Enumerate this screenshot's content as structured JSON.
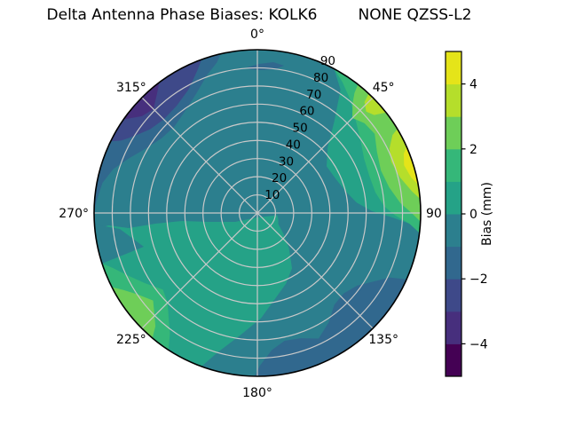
{
  "title": {
    "left": "Delta Antenna Phase Biases: KOLK6",
    "right": "NONE QZSS-L2"
  },
  "chart_data": {
    "type": "polar_contour",
    "description": "Filled polar contour map of antenna phase bias vs azimuth (0-360 deg, clockwise from north) and zenith angle (0 at center to 90 at rim)",
    "colormap": "viridis, 10 discrete 1 mm bands",
    "value_range_mm": [
      -5,
      5
    ],
    "levels_mm": [
      -5,
      -4,
      -3,
      -2,
      -1,
      0,
      1,
      2,
      3,
      4,
      5
    ],
    "grid": {
      "color": "#c9c9c9",
      "rings": [
        10,
        20,
        30,
        40,
        50,
        60,
        70,
        80
      ],
      "spokes_deg": [
        0,
        45,
        90,
        135,
        180,
        225,
        270,
        315
      ],
      "rim_color": "#000000"
    },
    "azimuth_tick_labels": [
      {
        "az": 0,
        "label": "0°"
      },
      {
        "az": 45,
        "label": "45°"
      },
      {
        "az": 90,
        "label": "90"
      },
      {
        "az": 135,
        "label": "135°"
      },
      {
        "az": 180,
        "label": "180°"
      },
      {
        "az": 225,
        "label": "225°"
      },
      {
        "az": 270,
        "label": "270°"
      },
      {
        "az": 315,
        "label": "315°"
      }
    ],
    "radial_tick_labels": [
      {
        "r": 10,
        "label": "10"
      },
      {
        "r": 20,
        "label": "20"
      },
      {
        "r": 30,
        "label": "30"
      },
      {
        "r": 40,
        "label": "40"
      },
      {
        "r": 50,
        "label": "50"
      },
      {
        "r": 60,
        "label": "60"
      },
      {
        "r": 70,
        "label": "70"
      },
      {
        "r": 80,
        "label": "80"
      },
      {
        "r": 90,
        "label": "90"
      }
    ],
    "radial_label_angle_deg": 22.5,
    "palette": {
      "m5": "#440154",
      "m4": "#472f7d",
      "m3": "#3e4989",
      "m2": "#31688e",
      "m1": "#2c7f8e",
      "p1": "#25a287",
      "p2": "#35b779",
      "p3": "#6ece58",
      "p4": "#b5de2b",
      "p5": "#e5e419"
    },
    "regions": [
      {
        "level": "0 to 1 mm",
        "color": "p1",
        "segments": [
          {
            "arc": [
              0,
              360
            ]
          }
        ]
      },
      {
        "level": "-1 to 0 mm",
        "color": "m1",
        "segments": [
          {
            "arc": [
              264,
              388
            ]
          },
          {
            "pts": [
              [
                34,
                82
              ],
              [
                40,
                66
              ],
              [
                47,
                53
              ],
              [
                56,
                46
              ],
              [
                66,
                47
              ],
              [
                76,
                50
              ],
              [
                84,
                55
              ],
              [
                89,
                63
              ],
              [
                92,
                75
              ],
              [
                94,
                84
              ],
              [
                96,
                90
              ]
            ]
          },
          {
            "arc": [
              96,
              200
            ]
          },
          {
            "pts": [
              [
                196,
                80
              ],
              [
                188,
                68
              ],
              [
                178,
                58
              ],
              [
                168,
                48
              ],
              [
                158,
                42
              ],
              [
                148,
                36
              ],
              [
                138,
                26
              ],
              [
                128,
                18
              ],
              [
                118,
                13
              ],
              [
                106,
                12
              ],
              [
                96,
                11
              ]
            ]
          },
          {
            "cpts": [
              [
                18,
                3
              ],
              [
                0,
                5
              ],
              [
                -25,
                10
              ],
              [
                -55,
                10
              ],
              [
                -85,
                9
              ],
              [
                -115,
                12
              ],
              [
                -145,
                17
              ],
              [
                -168,
                14
              ]
            ]
          }
        ]
      },
      {
        "level": "-1 to 0 mm",
        "color": "m1",
        "segments": [
          {
            "arc": [
              252,
              266
            ]
          },
          {
            "cpts": [
              [
                -155,
                18
              ],
              [
                -128,
                38
              ]
            ]
          }
        ]
      },
      {
        "level": "-2 to -1 mm",
        "color": "m2",
        "segments": [
          {
            "arc": [
              269,
              347
            ]
          },
          {
            "pts": [
              [
                345,
                86
              ],
              [
                340,
                81
              ],
              [
                333,
                74
              ],
              [
                325,
                69
              ],
              [
                316,
                66
              ],
              [
                308,
                67
              ],
              [
                300,
                71
              ],
              [
                293,
                77
              ],
              [
                287,
                83
              ],
              [
                281,
                87
              ],
              [
                274,
                89
              ]
            ]
          }
        ]
      },
      {
        "level": "-3 to -2 mm",
        "color": "m3",
        "segments": [
          {
            "arc": [
              296,
              340
            ]
          },
          {
            "pts": [
              [
                337,
                85
              ],
              [
                331,
                78
              ],
              [
                323,
                74
              ],
              [
                315,
                73
              ],
              [
                308,
                75
              ],
              [
                302,
                80
              ],
              [
                298,
                85
              ]
            ]
          }
        ]
      },
      {
        "level": "-4 to -3 mm",
        "color": "m4",
        "segments": [
          {
            "arc": [
              305,
              323
            ]
          },
          {
            "pts": [
              [
                320,
                86
              ],
              [
                315,
                81
              ],
              [
                310,
                83
              ],
              [
                307,
                87
              ]
            ]
          }
        ]
      },
      {
        "level": "-2 to -1 mm",
        "color": "m2",
        "segments": [
          {
            "cpts": [
              [
                -12,
                -164
              ],
              [
                2,
                -168
              ],
              [
                18,
                -170
              ],
              [
                30,
                -166
              ],
              [
                20,
                -162
              ],
              [
                4,
                -161
              ],
              [
                -8,
                -162
              ]
            ]
          }
        ]
      },
      {
        "level": "-2 to -1 mm",
        "color": "m2",
        "segments": [
          {
            "arc": [
              114,
              181
            ]
          },
          {
            "pts": [
              [
                179,
                84
              ],
              [
                174,
                76
              ],
              [
                168,
                72
              ],
              [
                161,
                73
              ],
              [
                154,
                77
              ],
              [
                147,
                72
              ],
              [
                140,
                66
              ],
              [
                133,
                65
              ],
              [
                126,
                68
              ],
              [
                120,
                75
              ],
              [
                116,
                81
              ]
            ]
          }
        ]
      },
      {
        "level": "1 to 2 mm",
        "color": "p2",
        "segments": [
          {
            "arc": [
              28,
              97
            ]
          },
          {
            "pts": [
              [
                94,
                84
              ],
              [
                91,
                76
              ],
              [
                87,
                70
              ],
              [
                80,
                66
              ],
              [
                72,
                65
              ],
              [
                63,
                66
              ],
              [
                54,
                70
              ],
              [
                46,
                75
              ],
              [
                39,
                81
              ],
              [
                33,
                86
              ]
            ]
          }
        ]
      },
      {
        "level": "2 to 3 mm",
        "color": "p3",
        "segments": [
          {
            "arc": [
              38,
              93
            ]
          },
          {
            "pts": [
              [
                90,
                85
              ],
              [
                86,
                79
              ],
              [
                79,
                74
              ],
              [
                71,
                72
              ],
              [
                63,
                74
              ],
              [
                56,
                78
              ],
              [
                50,
                77
              ],
              [
                45,
                74
              ],
              [
                41,
                80
              ],
              [
                39,
                85
              ]
            ]
          }
        ]
      },
      {
        "level": "3 to 4 mm",
        "color": "p4",
        "segments": [
          {
            "arc": [
              43,
              52
            ]
          },
          {
            "pts": [
              [
                50,
                84
              ],
              [
                47,
                82
              ],
              [
                44,
                85
              ]
            ]
          }
        ]
      },
      {
        "level": "3 to 4 mm",
        "color": "p4",
        "segments": [
          {
            "arc": [
              59,
              85
            ]
          },
          {
            "pts": [
              [
                82,
                86
              ],
              [
                76,
                81
              ],
              [
                69,
                79
              ],
              [
                64,
                81
              ],
              [
                60,
                86
              ]
            ]
          }
        ]
      },
      {
        "level": "4 to 5 mm",
        "color": "p5",
        "segments": [
          {
            "arc": [
              66,
              80
            ]
          },
          {
            "pts": [
              [
                77,
                87
              ],
              [
                72,
                85
              ],
              [
                68,
                87
              ]
            ]
          }
        ]
      },
      {
        "level": "1 to 2 mm",
        "color": "p2",
        "segments": [
          {
            "arc": [
              213,
              252
            ]
          },
          {
            "pts": [
              [
                249,
                85
              ],
              [
                244,
                79
              ],
              [
                238,
                73
              ],
              [
                231,
                67
              ],
              [
                225,
                70
              ],
              [
                220,
                76
              ],
              [
                216,
                82
              ]
            ]
          }
        ]
      },
      {
        "level": "2 to 3 mm",
        "color": "p3",
        "segments": [
          {
            "arc": [
              220,
              243
            ]
          },
          {
            "pts": [
              [
                240,
                85
              ],
              [
                236,
                80
              ],
              [
                230,
                75
              ],
              [
                226,
                79
              ],
              [
                222,
                84
              ]
            ]
          }
        ]
      }
    ],
    "colorbar": {
      "label": "Bias (mm)",
      "range": [
        -5,
        5
      ],
      "ticks": [
        {
          "value": 4,
          "label": "4"
        },
        {
          "value": 2,
          "label": "2"
        },
        {
          "value": 0,
          "label": "0"
        },
        {
          "value": -2,
          "label": "−2"
        },
        {
          "value": -4,
          "label": "−4"
        }
      ],
      "bands": [
        {
          "from": -5,
          "to": -4,
          "color": "m5"
        },
        {
          "from": -4,
          "to": -3,
          "color": "m4"
        },
        {
          "from": -3,
          "to": -2,
          "color": "m3"
        },
        {
          "from": -2,
          "to": -1,
          "color": "m2"
        },
        {
          "from": -1,
          "to": 0,
          "color": "m1"
        },
        {
          "from": 0,
          "to": 1,
          "color": "p1"
        },
        {
          "from": 1,
          "to": 2,
          "color": "p2"
        },
        {
          "from": 2,
          "to": 3,
          "color": "p3"
        },
        {
          "from": 3,
          "to": 4,
          "color": "p4"
        },
        {
          "from": 4,
          "to": 5,
          "color": "p5"
        }
      ]
    }
  }
}
